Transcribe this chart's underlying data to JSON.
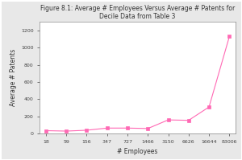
{
  "title": "Figure 8.1: Average # Employees Versus Average # Patents for\nDecile Data from Table 3",
  "xlabel": "# Employees",
  "ylabel": "Average # Patents",
  "x_values": [
    18,
    59,
    156,
    347,
    727,
    1466,
    3150,
    6626,
    16644,
    83006
  ],
  "y_values": [
    35,
    30,
    40,
    65,
    65,
    60,
    160,
    155,
    310,
    1130
  ],
  "x_tick_labels": [
    "18",
    "59",
    "156",
    "347",
    "727",
    "1466",
    "3150",
    "6626",
    "16644",
    "83006"
  ],
  "y_ticks": [
    0,
    200,
    400,
    600,
    800,
    1000,
    1200
  ],
  "line_color": "#FF69B4",
  "marker": "s",
  "marker_size": 2.5,
  "bg_color": "#ffffff",
  "fig_bg_color": "#e8e8e8",
  "title_fontsize": 5.5,
  "axis_label_fontsize": 5.5,
  "tick_fontsize": 4.5,
  "ylim": [
    0,
    1300
  ]
}
